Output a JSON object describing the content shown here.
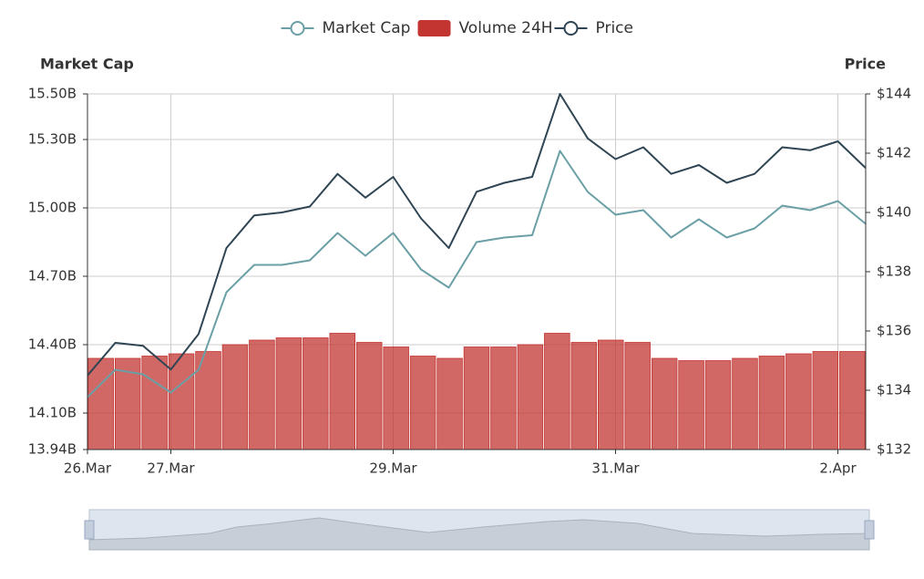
{
  "chart_data": {
    "type": "line",
    "legend": "top",
    "grid": true,
    "y_label": "Market Cap",
    "y2_label": "Price",
    "xlim": [
      -0.75,
      6.25
    ],
    "xticks": [
      {
        "value": -0.75,
        "label": "26.Mar"
      },
      {
        "value": 0,
        "label": "27.Mar"
      },
      {
        "value": 2,
        "label": "29.Mar"
      },
      {
        "value": 4,
        "label": "31.Mar"
      },
      {
        "value": 6,
        "label": "2.Apr"
      }
    ],
    "ylim": [
      13.94,
      15.5
    ],
    "yticks": [
      {
        "value": 13.94,
        "label": "13.94B"
      },
      {
        "value": 14.1,
        "label": "14.10B"
      },
      {
        "value": 14.4,
        "label": "14.40B"
      },
      {
        "value": 14.7,
        "label": "14.70B"
      },
      {
        "value": 15.0,
        "label": "15.00B"
      },
      {
        "value": 15.3,
        "label": "15.30B"
      },
      {
        "value": 15.5,
        "label": "15.50B"
      }
    ],
    "y2lim": [
      132,
      144
    ],
    "y2ticks": [
      {
        "value": 132,
        "label": "$132"
      },
      {
        "value": 134,
        "label": "$134"
      },
      {
        "value": 136,
        "label": "$136"
      },
      {
        "value": 138,
        "label": "$138"
      },
      {
        "value": 140,
        "label": "$140"
      },
      {
        "value": 142,
        "label": "$142"
      },
      {
        "value": 144,
        "label": "$144"
      }
    ],
    "x": [
      -0.75,
      -0.5,
      -0.25,
      0,
      0.25,
      0.5,
      0.75,
      1.0,
      1.25,
      1.5,
      1.75,
      2.0,
      2.25,
      2.5,
      2.75,
      3.0,
      3.25,
      3.5,
      3.75,
      4.0,
      4.25,
      4.5,
      4.75,
      5.0,
      5.25,
      5.5,
      5.75,
      6.0,
      6.25
    ],
    "series": [
      {
        "name": "Market Cap",
        "type": "line",
        "color": "#6a9fa6",
        "values": [
          14.17,
          14.29,
          14.27,
          14.19,
          14.29,
          14.63,
          14.75,
          14.75,
          14.77,
          14.89,
          14.79,
          14.89,
          14.73,
          14.65,
          14.85,
          14.87,
          14.88,
          15.25,
          15.07,
          14.97,
          14.99,
          14.87,
          14.95,
          14.87,
          14.91,
          15.01,
          14.99,
          15.03,
          14.93
        ]
      },
      {
        "name": "Volume 24H",
        "type": "bar",
        "color": "#c23531",
        "values": [
          14.34,
          14.34,
          14.35,
          14.36,
          14.37,
          14.4,
          14.42,
          14.43,
          14.43,
          14.45,
          14.41,
          14.39,
          14.35,
          14.34,
          14.39,
          14.39,
          14.4,
          14.45,
          14.41,
          14.42,
          14.41,
          14.34,
          14.33,
          14.33,
          14.34,
          14.35,
          14.36,
          14.37,
          14.37
        ]
      },
      {
        "name": "Price",
        "type": "line",
        "axis": "y2",
        "color": "#2f4554",
        "values": [
          134.5,
          135.6,
          135.5,
          134.7,
          135.9,
          138.8,
          139.9,
          140.0,
          140.2,
          141.3,
          140.5,
          141.2,
          139.8,
          138.8,
          140.7,
          141.0,
          141.2,
          144.0,
          142.5,
          141.8,
          142.2,
          141.3,
          141.6,
          141.0,
          141.3,
          142.2,
          142.1,
          142.4,
          141.5
        ]
      }
    ]
  }
}
